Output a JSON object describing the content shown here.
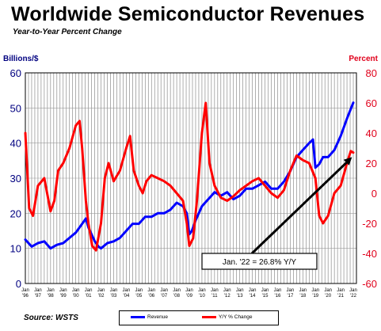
{
  "chart_data": {
    "type": "line",
    "title": "Worldwide Semiconductor Revenues",
    "subtitle": "Year-to-Year Percent Change",
    "ylabel_left": "Billions/$",
    "ylabel_right": "Percent",
    "ylim_left": [
      0,
      60
    ],
    "ylim_right": [
      -60,
      80
    ],
    "yticks_left": [
      0,
      10,
      20,
      30,
      40,
      50,
      60
    ],
    "yticks_right": [
      -60,
      -40,
      -20,
      0,
      20,
      40,
      60,
      80
    ],
    "x_years": [
      "'96",
      "'97",
      "'98",
      "'99",
      "'00",
      "'01",
      "'02",
      "'03",
      "'04",
      "'05",
      "'06",
      "'07",
      "'08",
      "'09",
      "'10",
      "'11",
      "'12",
      "'13",
      "'14",
      "'15",
      "'16",
      "'17",
      "'18",
      "'19",
      "'20",
      "'21",
      "'22"
    ],
    "x_tick_prefix": "Jan",
    "grid": true,
    "source": "Source: WSTS",
    "annotation": "Jan. '22 = 26.8% Y/Y",
    "colors": {
      "revenue": "#0000ff",
      "yoy": "#ff0000",
      "left_axis": "#000080",
      "right_axis": "#e0001b"
    },
    "series": [
      {
        "name": "Revenue",
        "axis": "left",
        "x": [
          1996.0,
          1996.5,
          1997.0,
          1997.5,
          1998.0,
          1998.5,
          1999.0,
          1999.5,
          2000.0,
          2000.5,
          2000.8,
          2001.0,
          2001.5,
          2001.8,
          2002.0,
          2002.5,
          2003.0,
          2003.5,
          2004.0,
          2004.5,
          2005.0,
          2005.5,
          2006.0,
          2006.5,
          2007.0,
          2007.5,
          2008.0,
          2008.5,
          2008.8,
          2009.0,
          2009.2,
          2009.5,
          2010.0,
          2010.5,
          2011.0,
          2011.5,
          2012.0,
          2012.5,
          2013.0,
          2013.5,
          2014.0,
          2014.5,
          2015.0,
          2015.5,
          2016.0,
          2016.5,
          2017.0,
          2017.5,
          2018.0,
          2018.5,
          2018.8,
          2019.0,
          2019.3,
          2019.6,
          2020.0,
          2020.5,
          2021.0,
          2021.5,
          2022.0
        ],
        "values": [
          12.5,
          10.5,
          11.5,
          12,
          10,
          11,
          11.5,
          13,
          14.5,
          17,
          18.5,
          16,
          12,
          10.5,
          10,
          11.5,
          12,
          13,
          15,
          17,
          17,
          19,
          19,
          20,
          20,
          21,
          23,
          22,
          20,
          14,
          15,
          18,
          22,
          24,
          26,
          25,
          26,
          24,
          25,
          27,
          27,
          28,
          29,
          27,
          27,
          29,
          32,
          36,
          38,
          40,
          41,
          33,
          34,
          36,
          36,
          38,
          42,
          47,
          51.5
        ]
      },
      {
        "name": "Y/Y % Change",
        "axis": "right",
        "x": [
          1996.0,
          1996.3,
          1996.6,
          1997.0,
          1997.5,
          1998.0,
          1998.3,
          1998.6,
          1999.0,
          1999.5,
          2000.0,
          2000.3,
          2000.5,
          2000.8,
          2001.0,
          2001.3,
          2001.6,
          2002.0,
          2002.3,
          2002.6,
          2003.0,
          2003.5,
          2004.0,
          2004.3,
          2004.6,
          2005.0,
          2005.3,
          2005.6,
          2006.0,
          2006.5,
          2007.0,
          2007.5,
          2008.0,
          2008.5,
          2008.8,
          2009.0,
          2009.3,
          2009.6,
          2010.0,
          2010.3,
          2010.6,
          2011.0,
          2011.5,
          2012.0,
          2012.5,
          2013.0,
          2013.5,
          2014.0,
          2014.5,
          2015.0,
          2015.5,
          2016.0,
          2016.5,
          2017.0,
          2017.5,
          2018.0,
          2018.5,
          2019.0,
          2019.3,
          2019.6,
          2020.0,
          2020.5,
          2021.0,
          2021.5,
          2021.8,
          2022.0
        ],
        "values": [
          40,
          -10,
          -15,
          5,
          10,
          -12,
          -5,
          15,
          20,
          30,
          45,
          48,
          30,
          -5,
          -20,
          -35,
          -38,
          -20,
          10,
          20,
          8,
          15,
          30,
          38,
          15,
          5,
          0,
          8,
          12,
          10,
          8,
          5,
          0,
          -5,
          -20,
          -35,
          -30,
          -5,
          40,
          60,
          20,
          5,
          -3,
          -5,
          -2,
          2,
          5,
          8,
          10,
          5,
          0,
          -3,
          2,
          15,
          25,
          22,
          20,
          10,
          -15,
          -20,
          -15,
          0,
          5,
          20,
          28,
          27
        ]
      }
    ]
  }
}
